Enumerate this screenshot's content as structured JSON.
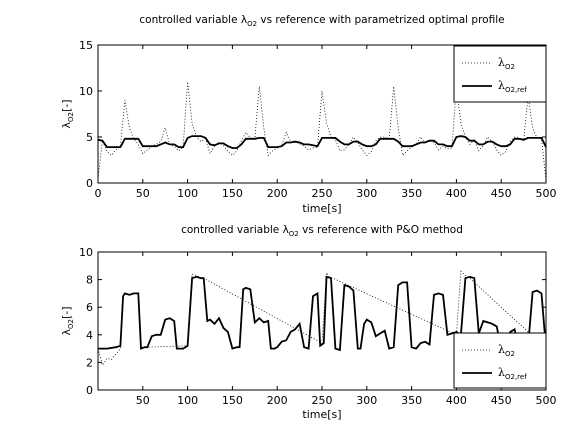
{
  "chart_data": [
    {
      "type": "line",
      "title": "controlled variable λO2 vs reference with parametrized optimal profile",
      "title_prefix": "controlled variable λ",
      "title_sub": "O2",
      "title_suffix": " vs reference with parametrized optimal profile",
      "xlabel": "time[s]",
      "ylabel": "λO2[-]",
      "ylabel_main": "λ",
      "ylabel_sub": "O2",
      "ylabel_suffix": "[-]",
      "xlim": [
        0,
        500
      ],
      "ylim": [
        0,
        15
      ],
      "xticks": [
        0,
        50,
        100,
        150,
        200,
        250,
        300,
        350,
        400,
        450,
        500
      ],
      "xtick_labels": [
        "0",
        "50",
        "100",
        "150",
        "200",
        "250",
        "300",
        "350",
        "400",
        "450",
        "500"
      ],
      "yticks": [
        0,
        5,
        10,
        15
      ],
      "ytick_labels": [
        "0",
        "5",
        "10",
        "15"
      ],
      "grid": false,
      "legend_position": "top-right",
      "legend": [
        {
          "main": "λ",
          "sub": "O2",
          "style": "dotted"
        },
        {
          "main": "λ",
          "sub": "O2,ref",
          "style": "solid"
        }
      ],
      "series": [
        {
          "style": "solid",
          "x": [
            0,
            5,
            10,
            15,
            20,
            25,
            30,
            35,
            40,
            45,
            50,
            55,
            60,
            65,
            70,
            75,
            80,
            85,
            90,
            95,
            100,
            105,
            110,
            115,
            120,
            125,
            130,
            135,
            140,
            145,
            150,
            155,
            160,
            165,
            170,
            175,
            180,
            185,
            190,
            195,
            200,
            205,
            210,
            215,
            220,
            225,
            230,
            235,
            240,
            245,
            250,
            255,
            260,
            265,
            270,
            275,
            280,
            285,
            290,
            295,
            300,
            305,
            310,
            315,
            320,
            325,
            330,
            335,
            340,
            345,
            350,
            355,
            360,
            365,
            370,
            375,
            380,
            385,
            390,
            395,
            400,
            405,
            410,
            415,
            420,
            425,
            430,
            435,
            440,
            445,
            450,
            455,
            460,
            465,
            470,
            475,
            480,
            485,
            490,
            495,
            500
          ],
          "y": [
            4.7,
            4.6,
            3.9,
            3.9,
            3.9,
            3.9,
            4.8,
            4.8,
            4.8,
            4.8,
            4.0,
            4.0,
            4.0,
            4.0,
            4.2,
            4.4,
            4.2,
            4.2,
            3.9,
            3.9,
            4.9,
            5.1,
            5.1,
            5.1,
            4.9,
            4.2,
            4.1,
            4.3,
            4.3,
            4.0,
            3.8,
            3.8,
            4.2,
            4.8,
            4.8,
            4.8,
            4.9,
            4.9,
            3.9,
            3.9,
            3.9,
            4.0,
            4.4,
            4.4,
            4.5,
            4.4,
            4.2,
            4.2,
            4.1,
            4.0,
            4.9,
            4.9,
            4.9,
            4.9,
            4.5,
            4.2,
            4.2,
            4.5,
            4.5,
            4.2,
            4.0,
            4.0,
            4.2,
            4.8,
            4.8,
            4.8,
            4.8,
            4.5,
            4.0,
            4.0,
            4.0,
            4.2,
            4.4,
            4.4,
            4.6,
            4.6,
            4.2,
            4.2,
            4.0,
            4.0,
            5.0,
            5.1,
            5.0,
            4.6,
            4.6,
            4.2,
            4.2,
            4.5,
            4.5,
            4.2,
            4.0,
            4.0,
            4.2,
            4.8,
            4.8,
            4.7,
            4.9,
            4.9,
            4.9,
            4.9,
            3.9
          ]
        },
        {
          "style": "dotted",
          "x": [
            0,
            5,
            10,
            15,
            20,
            25,
            30,
            35,
            40,
            45,
            50,
            55,
            60,
            65,
            70,
            75,
            80,
            85,
            90,
            95,
            100,
            105,
            110,
            115,
            120,
            125,
            130,
            135,
            140,
            145,
            150,
            155,
            160,
            165,
            170,
            175,
            180,
            185,
            190,
            195,
            200,
            205,
            210,
            215,
            220,
            225,
            230,
            235,
            240,
            245,
            250,
            255,
            260,
            265,
            270,
            275,
            280,
            285,
            290,
            295,
            300,
            305,
            310,
            315,
            320,
            325,
            330,
            335,
            340,
            345,
            350,
            355,
            360,
            365,
            370,
            375,
            380,
            385,
            390,
            395,
            400,
            405,
            410,
            415,
            420,
            425,
            430,
            435,
            440,
            445,
            450,
            455,
            460,
            465,
            470,
            475,
            480,
            485,
            490,
            495,
            500
          ],
          "y": [
            0.5,
            4.6,
            3.4,
            3.0,
            3.6,
            4.0,
            9.0,
            6.0,
            4.8,
            4.2,
            3.2,
            3.6,
            4.0,
            4.2,
            4.5,
            6.0,
            4.2,
            4.0,
            3.5,
            3.9,
            11.0,
            6.5,
            5.0,
            4.5,
            4.8,
            3.2,
            4.0,
            4.4,
            4.1,
            3.4,
            3.0,
            3.5,
            4.6,
            5.5,
            4.9,
            4.8,
            10.5,
            6.0,
            3.0,
            3.5,
            3.8,
            4.1,
            5.5,
            4.5,
            4.4,
            4.3,
            4.0,
            3.6,
            3.8,
            3.9,
            10.0,
            6.5,
            5.0,
            4.7,
            3.5,
            3.6,
            4.2,
            5.0,
            4.4,
            3.6,
            3.0,
            3.4,
            4.6,
            5.0,
            5.0,
            4.8,
            10.5,
            6.0,
            3.0,
            3.5,
            3.9,
            4.2,
            5.0,
            4.4,
            4.7,
            4.4,
            3.6,
            4.0,
            3.7,
            3.8,
            10.5,
            6.5,
            5.0,
            4.2,
            4.7,
            3.5,
            4.1,
            5.0,
            4.5,
            3.6,
            3.0,
            3.4,
            4.5,
            5.0,
            4.9,
            4.6,
            9.5,
            6.0,
            4.9,
            4.8,
            0.3
          ]
        }
      ]
    },
    {
      "type": "line",
      "title": "controlled variable λO2 vs reference with P&O method",
      "title_prefix": "controlled variable λ",
      "title_sub": "O2",
      "title_suffix": " vs reference with P&O method",
      "xlabel": "time[s]",
      "ylabel": "λO2[-]",
      "ylabel_main": "λ",
      "ylabel_sub": "O2",
      "ylabel_suffix": "[-]",
      "xlim": [
        0,
        500
      ],
      "ylim": [
        0,
        10
      ],
      "xticks": [
        50,
        100,
        150,
        200,
        250,
        300,
        350,
        400,
        450,
        500
      ],
      "xtick_labels": [
        "50",
        "100",
        "150",
        "200",
        "250",
        "300",
        "350",
        "400",
        "450",
        "500"
      ],
      "yticks": [
        0,
        2,
        4,
        6,
        8,
        10
      ],
      "ytick_labels": [
        "0",
        "2",
        "4",
        "6",
        "8",
        "10"
      ],
      "grid": false,
      "legend_position": "bottom-right",
      "legend": [
        {
          "main": "λ",
          "sub": "O2",
          "style": "dotted"
        },
        {
          "main": "λ",
          "sub": "O2,ref",
          "style": "solid"
        }
      ],
      "series": [
        {
          "style": "solid",
          "x": [
            0,
            10,
            20,
            25,
            28,
            30,
            35,
            40,
            45,
            48,
            52,
            55,
            60,
            65,
            70,
            75,
            80,
            85,
            88,
            92,
            95,
            100,
            105,
            110,
            115,
            118,
            122,
            125,
            130,
            135,
            140,
            145,
            150,
            155,
            158,
            162,
            165,
            170,
            175,
            180,
            185,
            190,
            193,
            197,
            200,
            205,
            210,
            215,
            220,
            225,
            230,
            235,
            240,
            245,
            248,
            252,
            255,
            260,
            265,
            270,
            275,
            280,
            285,
            290,
            293,
            297,
            300,
            305,
            310,
            315,
            320,
            325,
            330,
            335,
            340,
            345,
            350,
            355,
            360,
            365,
            370,
            375,
            380,
            385,
            390,
            395,
            400,
            405,
            410,
            415,
            420,
            425,
            430,
            435,
            440,
            445,
            450,
            455,
            460,
            465,
            470,
            475,
            480,
            485,
            490,
            495,
            500
          ],
          "y": [
            3.0,
            3.0,
            3.1,
            3.2,
            6.8,
            7.0,
            6.9,
            7.0,
            7.0,
            3.0,
            3.1,
            3.1,
            3.9,
            4.0,
            4.0,
            5.1,
            5.2,
            5.0,
            3.0,
            3.0,
            3.0,
            3.2,
            8.1,
            8.2,
            8.1,
            8.1,
            5.0,
            5.1,
            4.8,
            5.2,
            4.5,
            4.2,
            3.0,
            3.1,
            3.1,
            7.3,
            7.4,
            7.3,
            4.9,
            5.2,
            4.9,
            5.0,
            3.0,
            3.0,
            3.1,
            3.5,
            3.6,
            4.2,
            4.4,
            4.8,
            3.1,
            3.0,
            6.8,
            7.0,
            3.2,
            3.4,
            8.2,
            8.1,
            3.0,
            2.9,
            7.6,
            7.5,
            7.2,
            3.0,
            3.0,
            4.8,
            5.1,
            4.9,
            3.9,
            4.1,
            4.3,
            3.0,
            3.1,
            7.6,
            7.8,
            7.8,
            3.1,
            3.0,
            3.4,
            3.5,
            3.3,
            6.9,
            7.0,
            6.9,
            4.0,
            4.1,
            4.2,
            4.0,
            8.1,
            8.2,
            8.1,
            4.1,
            5.0,
            4.9,
            4.8,
            4.6,
            3.0,
            3.0,
            4.2,
            4.4,
            3.0,
            3.1,
            3.2,
            7.1,
            7.2,
            7.0,
            3.0
          ]
        },
        {
          "style": "dotted",
          "x": [
            0,
            5,
            10,
            15,
            20,
            25,
            28,
            30,
            35,
            40,
            45,
            48,
            52,
            100,
            105,
            110,
            115,
            118,
            250,
            255,
            258,
            262,
            400,
            405,
            410,
            415,
            500
          ],
          "y": [
            3.0,
            1.8,
            2.3,
            2.2,
            2.6,
            3.0,
            6.8,
            7.0,
            6.9,
            7.0,
            7.0,
            3.0,
            3.1,
            3.2,
            8.4,
            8.3,
            8.1,
            8.1,
            3.4,
            8.5,
            8.2,
            8.1,
            4.0,
            8.6,
            8.3,
            8.1,
            3.0
          ]
        }
      ]
    }
  ]
}
